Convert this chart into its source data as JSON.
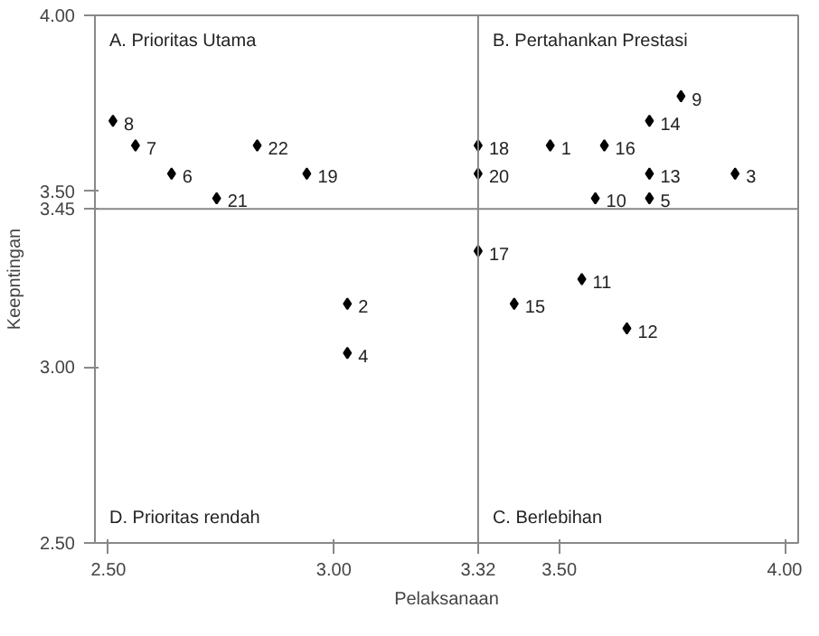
{
  "chart_data": {
    "type": "scatter",
    "xlabel": "Pelaksanaan",
    "ylabel": "Keepntingan",
    "x": [
      2.51,
      2.56,
      2.64,
      2.74,
      2.83,
      2.94,
      3.77,
      3.7,
      3.32,
      3.48,
      3.6,
      3.32,
      3.7,
      3.89,
      3.58,
      3.7,
      3.32,
      3.55,
      3.4,
      3.65,
      3.03,
      3.03
    ],
    "series": [
      {
        "color": "#000000",
        "values": [
          3.7,
          3.63,
          3.55,
          3.48,
          3.63,
          3.55,
          3.77,
          3.7,
          3.63,
          3.63,
          3.63,
          3.55,
          3.55,
          3.55,
          3.48,
          3.48,
          3.33,
          3.25,
          3.18,
          3.11,
          3.18,
          3.04
        ]
      }
    ],
    "marker": "diamond",
    "grid": false,
    "xlim": [
      2.47,
      4.03
    ],
    "ylim": [
      2.5,
      4.0
    ],
    "xticks": [
      {
        "value": 2.5,
        "label": "2.50"
      },
      {
        "value": 3.0,
        "label": "3.00"
      },
      3.32,
      {
        "value": 3.5,
        "label": "3.50"
      },
      {
        "value": 4.0,
        "label": "4.00"
      }
    ],
    "yticks": [
      {
        "value": 2.5,
        "label": "2.50"
      },
      {
        "value": 3.0,
        "label": "3.00"
      },
      3.45,
      {
        "value": 3.5,
        "label": "3.50"
      },
      {
        "value": 4.0,
        "label": "4.00"
      }
    ],
    "ref_lines": [
      {
        "axis": "x",
        "value": 3.32,
        "color": "#888888"
      },
      {
        "axis": "y",
        "value": 3.45,
        "color": "#888888"
      }
    ],
    "annotations": [
      "A. Prioritas Utama",
      "B. Pertahankan Prestasi",
      "C. Berlebihan",
      "D. Prioritas rendah",
      {
        "text": "8",
        "x": 2.51,
        "y": 3.7
      },
      {
        "text": "7",
        "x": 2.56,
        "y": 3.63
      },
      {
        "text": "6",
        "x": 2.64,
        "y": 3.55
      },
      {
        "text": "21",
        "x": 2.74,
        "y": 3.48
      },
      {
        "text": "22",
        "x": 2.83,
        "y": 3.63
      },
      {
        "text": "19",
        "x": 2.94,
        "y": 3.55
      },
      {
        "text": "9",
        "x": 3.77,
        "y": 3.77
      },
      {
        "text": "14",
        "x": 3.7,
        "y": 3.7
      },
      {
        "text": "18",
        "x": 3.32,
        "y": 3.63
      },
      {
        "text": "1",
        "x": 3.48,
        "y": 3.63
      },
      {
        "text": "16",
        "x": 3.6,
        "y": 3.63
      },
      {
        "text": "20",
        "x": 3.32,
        "y": 3.55
      },
      {
        "text": "13",
        "x": 3.7,
        "y": 3.55
      },
      {
        "text": "3",
        "x": 3.89,
        "y": 3.55
      },
      {
        "text": "10",
        "x": 3.58,
        "y": 3.48
      },
      {
        "text": "5",
        "x": 3.7,
        "y": 3.48
      },
      {
        "text": "17",
        "x": 3.32,
        "y": 3.33
      },
      {
        "text": "11",
        "x": 3.55,
        "y": 3.25
      },
      {
        "text": "15",
        "x": 3.4,
        "y": 3.18
      },
      {
        "text": "12",
        "x": 3.65,
        "y": 3.11
      },
      {
        "text": "2",
        "x": 3.03,
        "y": 3.18
      },
      {
        "text": "4",
        "x": 3.03,
        "y": 3.04
      }
    ]
  }
}
